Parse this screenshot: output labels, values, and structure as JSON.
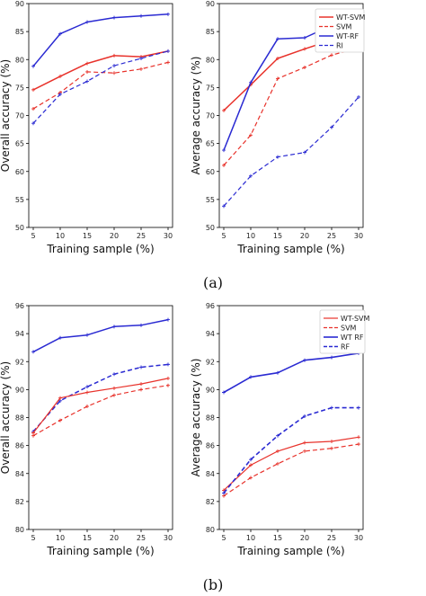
{
  "captions": [
    "(a)",
    "(b)"
  ],
  "colors": {
    "red": "#e8322b",
    "blue": "#2a2ad2"
  },
  "chart_data": [
    {
      "type": "line",
      "xlabel": "Training sample (%)",
      "ylabel": "Overall accuracy (%)",
      "x": [
        5,
        10,
        15,
        20,
        25,
        30
      ],
      "xticks": [
        "5",
        "10",
        "15",
        "20",
        "25",
        "30"
      ],
      "ylim": [
        50,
        90
      ],
      "yticks": [
        "50",
        "55",
        "60",
        "65",
        "70",
        "75",
        "80",
        "85",
        "90"
      ],
      "grid": false,
      "legend": "none",
      "series": [
        {
          "values": [
            78.8,
            84.6,
            86.7,
            87.5,
            87.8,
            88.1
          ],
          "color": "blue",
          "dash": "solid",
          "width": 1.5
        },
        {
          "values": [
            74.6,
            77.0,
            79.3,
            80.7,
            80.5,
            81.5
          ],
          "color": "red",
          "dash": "solid",
          "width": 1.5
        },
        {
          "values": [
            71.2,
            74.1,
            77.8,
            77.6,
            78.3,
            79.5
          ],
          "color": "red",
          "dash": "dashed",
          "width": 1.2
        },
        {
          "values": [
            68.6,
            73.8,
            76.1,
            78.9,
            80.2,
            81.5
          ],
          "color": "blue",
          "dash": "dashed",
          "width": 1.2
        }
      ]
    },
    {
      "type": "line",
      "xlabel": "Training sample (%)",
      "ylabel": "Average accuracy (%)",
      "x": [
        5,
        10,
        15,
        20,
        25,
        30
      ],
      "xticks": [
        "5",
        "10",
        "15",
        "20",
        "25",
        "30"
      ],
      "ylim": [
        50,
        90
      ],
      "yticks": [
        "50",
        "55",
        "60",
        "65",
        "70",
        "75",
        "80",
        "85",
        "90"
      ],
      "grid": false,
      "legend": "top-right",
      "series": [
        {
          "name": "WT-SVM",
          "values": [
            70.9,
            75.5,
            80.2,
            81.9,
            83.5,
            85.0
          ],
          "color": "red",
          "dash": "solid",
          "width": 1.5
        },
        {
          "name": "SVM",
          "values": [
            61.1,
            66.5,
            76.6,
            78.6,
            80.8,
            82.1
          ],
          "color": "red",
          "dash": "dashed",
          "width": 1.2
        },
        {
          "name": "WT-RF",
          "values": [
            63.8,
            75.9,
            83.7,
            83.9,
            86.1,
            88.0
          ],
          "color": "blue",
          "dash": "solid",
          "width": 1.5
        },
        {
          "name": "RI",
          "values": [
            53.8,
            59.2,
            62.6,
            63.4,
            67.9,
            73.3
          ],
          "color": "blue",
          "dash": "dashed",
          "width": 1.2
        }
      ]
    },
    {
      "type": "line",
      "xlabel": "Training sample (%)",
      "ylabel": "Overall accuracy (%)",
      "x": [
        5,
        10,
        15,
        20,
        25,
        30
      ],
      "xticks": [
        "5",
        "10",
        "15",
        "20",
        "25",
        "30"
      ],
      "ylim": [
        80,
        96
      ],
      "yticks": [
        "80",
        "82",
        "84",
        "86",
        "88",
        "90",
        "92",
        "94",
        "96"
      ],
      "grid": false,
      "legend": "none",
      "series": [
        {
          "values": [
            92.7,
            93.7,
            93.9,
            94.5,
            94.6,
            95.0
          ],
          "color": "blue",
          "dash": "solid",
          "width": 1.5
        },
        {
          "values": [
            87.0,
            89.2,
            90.2,
            91.1,
            91.6,
            91.8
          ],
          "color": "blue",
          "dash": "dashed",
          "width": 1.5
        },
        {
          "values": [
            86.9,
            89.4,
            89.8,
            90.1,
            90.4,
            90.8
          ],
          "color": "red",
          "dash": "solid",
          "width": 1.2
        },
        {
          "values": [
            86.7,
            87.8,
            88.8,
            89.6,
            90.0,
            90.3
          ],
          "color": "red",
          "dash": "dashed",
          "width": 1.2
        }
      ]
    },
    {
      "type": "line",
      "xlabel": "Training sample (%)",
      "ylabel": "Average accuracy (%)",
      "x": [
        5,
        10,
        15,
        20,
        25,
        30
      ],
      "xticks": [
        "5",
        "10",
        "15",
        "20",
        "25",
        "30"
      ],
      "ylim": [
        80,
        96
      ],
      "yticks": [
        "80",
        "82",
        "84",
        "86",
        "88",
        "90",
        "92",
        "94",
        "96"
      ],
      "grid": false,
      "legend": "top-right",
      "series": [
        {
          "name": "WT-SVM",
          "values": [
            82.8,
            84.6,
            85.6,
            86.2,
            86.3,
            86.6
          ],
          "color": "red",
          "dash": "solid",
          "width": 1.2
        },
        {
          "name": "SVM",
          "values": [
            82.4,
            83.7,
            84.7,
            85.6,
            85.8,
            86.1
          ],
          "color": "red",
          "dash": "dashed",
          "width": 1.2
        },
        {
          "name": "WT RF",
          "values": [
            89.8,
            90.9,
            91.2,
            92.1,
            92.3,
            92.6
          ],
          "color": "blue",
          "dash": "solid",
          "width": 1.6
        },
        {
          "name": "RF",
          "values": [
            82.6,
            85.0,
            86.7,
            88.1,
            88.7,
            88.7
          ],
          "color": "blue",
          "dash": "dashed",
          "width": 1.6
        }
      ]
    }
  ]
}
